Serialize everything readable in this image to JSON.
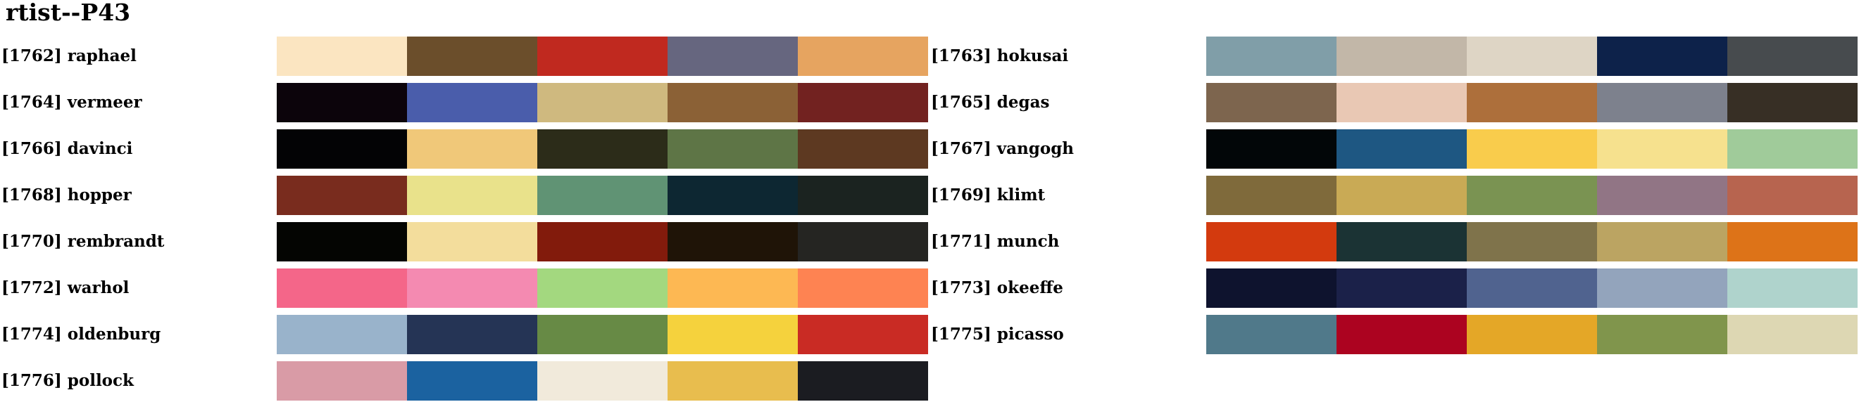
{
  "title": "rtist--P43",
  "palettes": [
    {
      "label": "[1762] raphael",
      "colors": [
        "#FBE5C1",
        "#6B4E2B",
        "#C0291F",
        "#66667F",
        "#E6A460"
      ]
    },
    {
      "label": "[1763] hokusai",
      "colors": [
        "#809EA8",
        "#C2B7A8",
        "#DED5C5",
        "#0D224A",
        "#474B4E"
      ]
    },
    {
      "label": "[1764] vermeer",
      "colors": [
        "#0C040B",
        "#4A5DAB",
        "#CFB97F",
        "#8B6136",
        "#722220"
      ]
    },
    {
      "label": "[1765] degas",
      "colors": [
        "#7D654E",
        "#E9C8B4",
        "#AD6F3B",
        "#7D818D",
        "#372F25"
      ]
    },
    {
      "label": "[1766] davinci",
      "colors": [
        "#030305",
        "#F0C879",
        "#2C2C19",
        "#5E7546",
        "#5D3921"
      ]
    },
    {
      "label": "[1767] vangogh",
      "colors": [
        "#020608",
        "#1E5782",
        "#F9CC4C",
        "#F6E18E",
        "#A0CB9A"
      ]
    },
    {
      "label": "[1768] hopper",
      "colors": [
        "#792C1E",
        "#E9E28B",
        "#609374",
        "#0D2732",
        "#1B2320"
      ]
    },
    {
      "label": "[1769] klimt",
      "colors": [
        "#7F6A3B",
        "#C9AA55",
        "#7A9352",
        "#917585",
        "#B7644F"
      ]
    },
    {
      "label": "[1770] rembrandt",
      "colors": [
        "#040502",
        "#F3DD9C",
        "#821B0C",
        "#1F1407",
        "#252522"
      ]
    },
    {
      "label": "[1771] munch",
      "colors": [
        "#D33A0E",
        "#1B3334",
        "#7F734B",
        "#BBA462",
        "#DD7318"
      ]
    },
    {
      "label": "[1772] warhol",
      "colors": [
        "#F46689",
        "#F48AB1",
        "#A3D87F",
        "#FDB853",
        "#FE8352"
      ]
    },
    {
      "label": "[1773] okeeffe",
      "colors": [
        "#0E132E",
        "#1B2149",
        "#50638F",
        "#93A4BC",
        "#AFD3CC"
      ]
    },
    {
      "label": "[1774] oldenburg",
      "colors": [
        "#99B3CB",
        "#253455",
        "#678A45",
        "#F5D23D",
        "#C92B24"
      ]
    },
    {
      "label": "[1775] picasso",
      "colors": [
        "#50798A",
        "#AC0320",
        "#E4A727",
        "#80954C",
        "#DDD7B3"
      ]
    },
    {
      "label": "[1776] pollock",
      "colors": [
        "#D99BA6",
        "#1B62A0",
        "#F1EADB",
        "#E8BD4E",
        "#1B1C21"
      ]
    }
  ]
}
